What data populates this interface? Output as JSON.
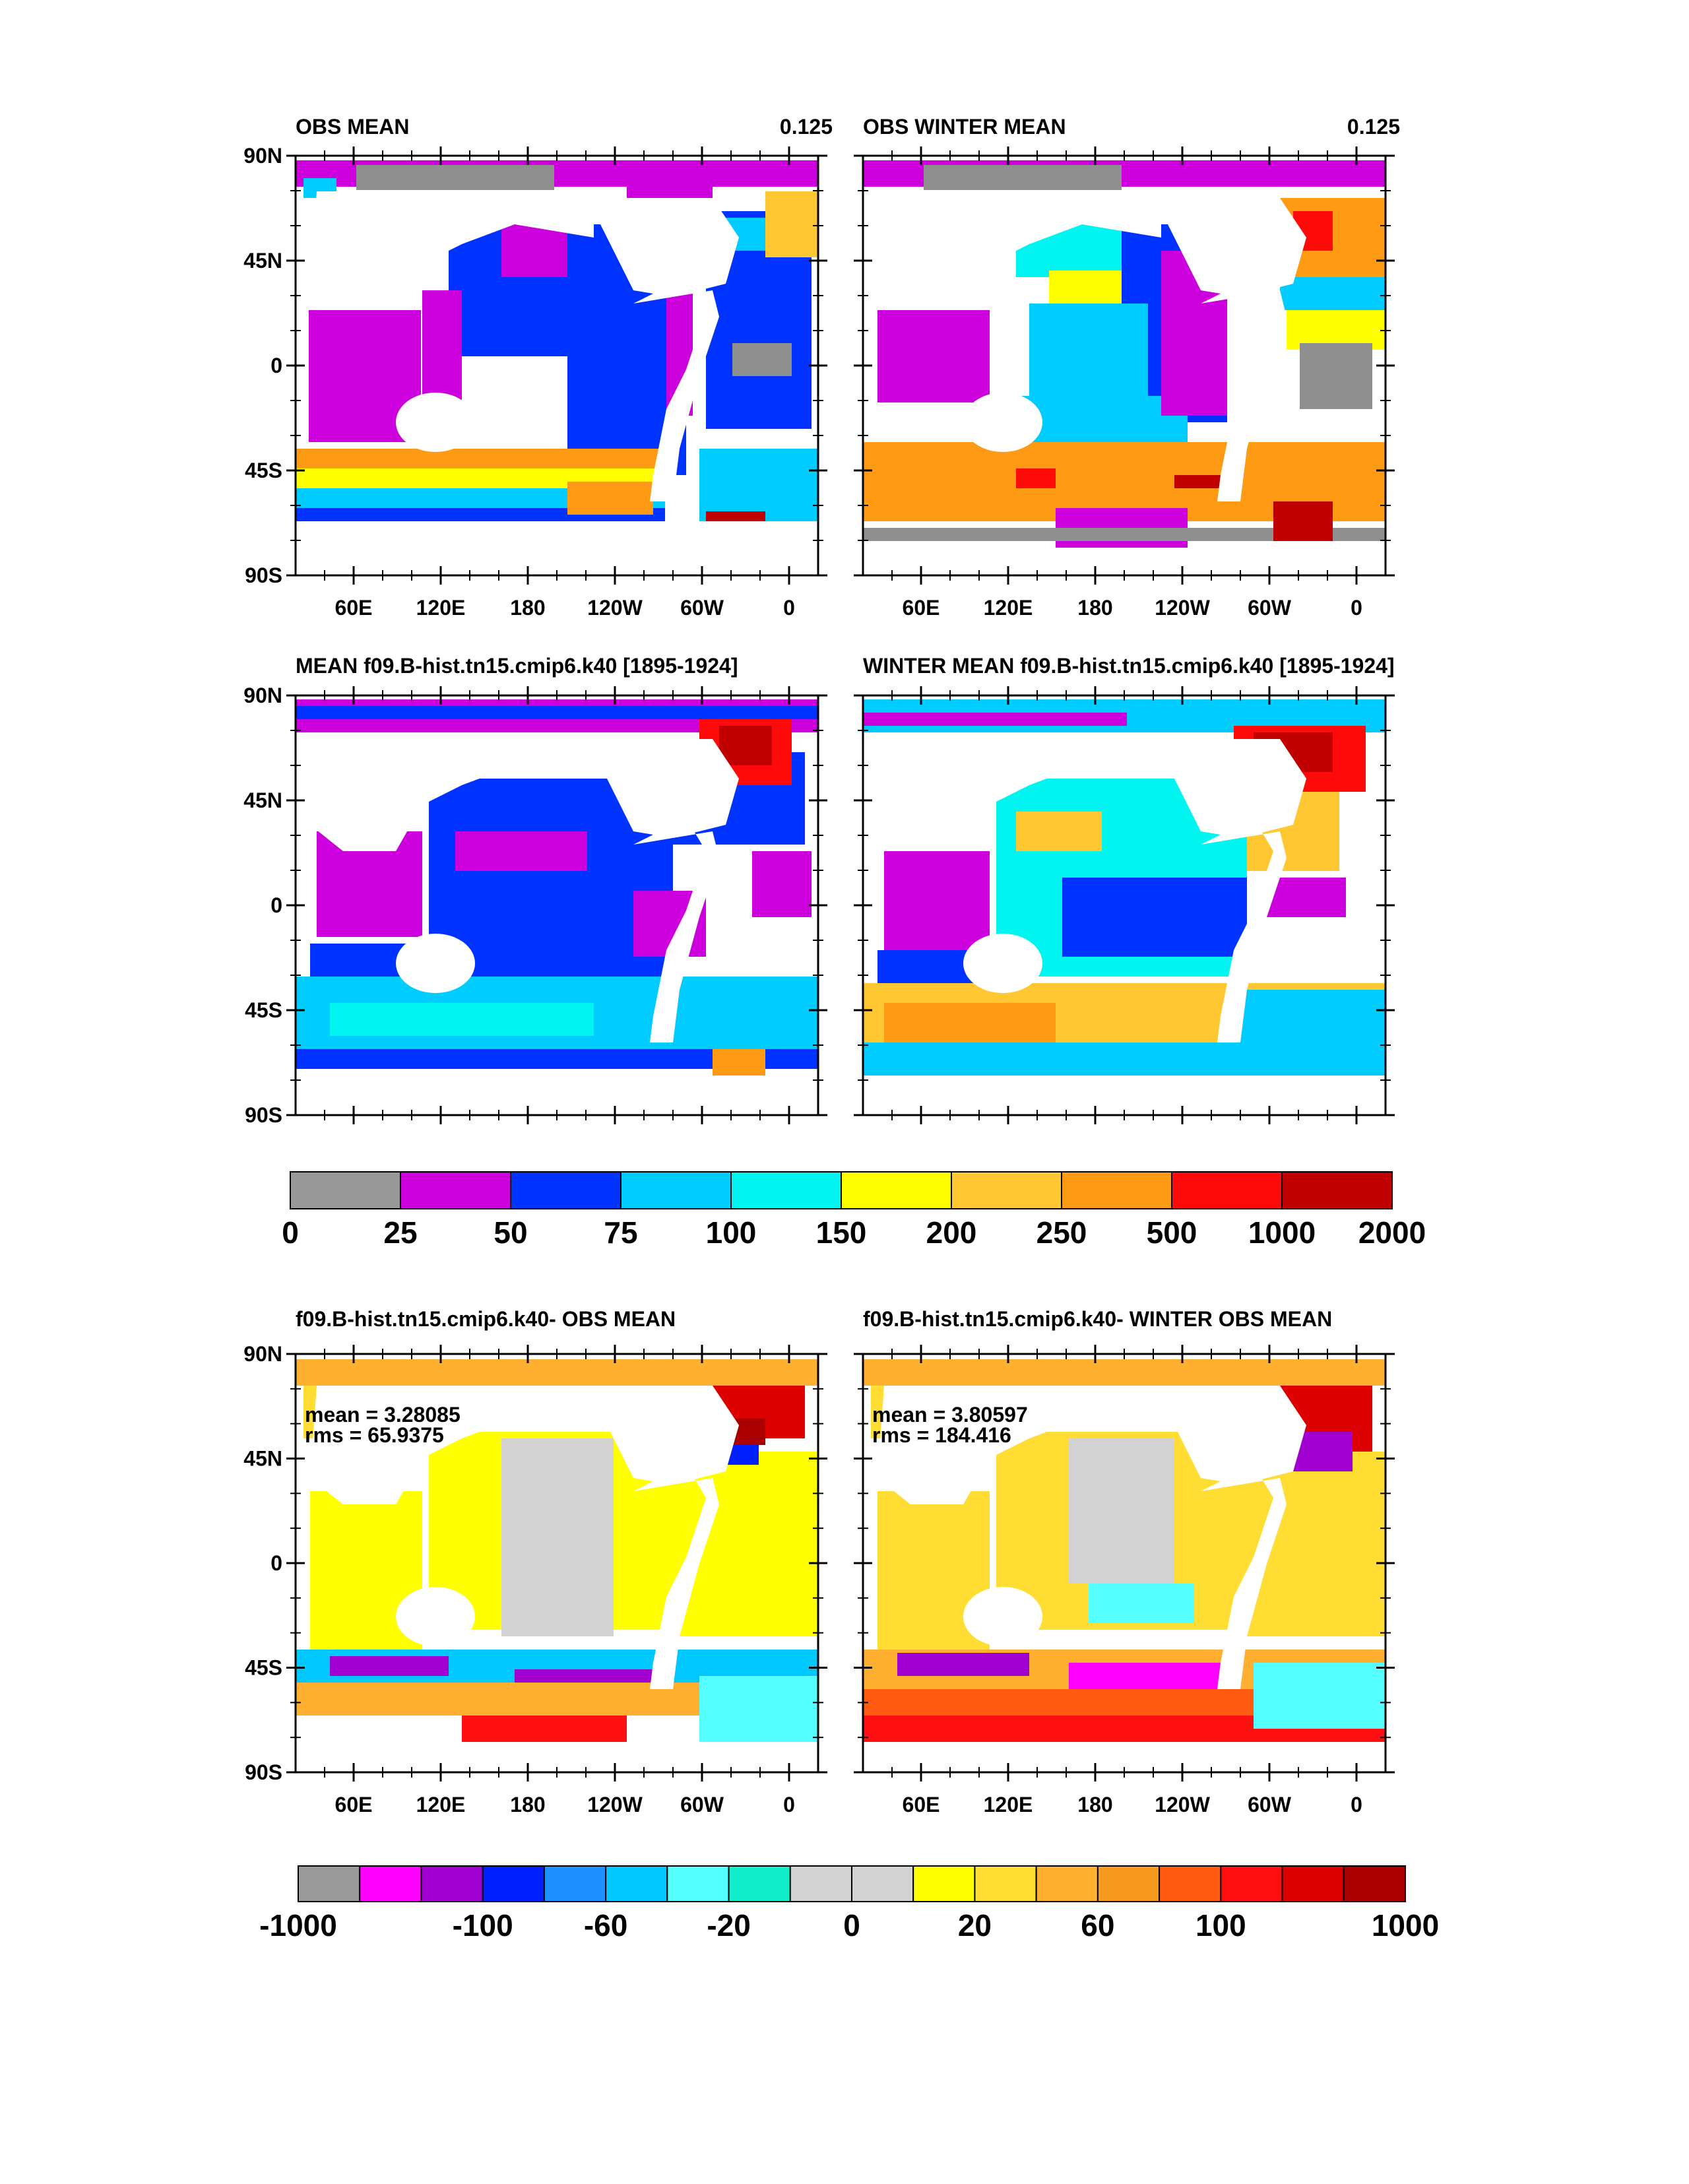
{
  "chart_data": {
    "type": "heatmap",
    "panels": [
      {
        "id": "p1",
        "title": "OBS MEAN",
        "right_label": "0.125",
        "scale": "abs",
        "field": "obs_annual"
      },
      {
        "id": "p2",
        "title": "OBS WINTER MEAN",
        "right_label": "0.125",
        "scale": "abs",
        "field": "obs_winter"
      },
      {
        "id": "p3",
        "title": "MEAN f09.B-hist.tn15.cmip6.k40 [1895-1924]",
        "right_label": "",
        "scale": "abs",
        "field": "model_annual"
      },
      {
        "id": "p4",
        "title": "WINTER MEAN f09.B-hist.tn15.cmip6.k40 [1895-1924]",
        "right_label": "",
        "scale": "abs",
        "field": "model_winter"
      },
      {
        "id": "p5",
        "title": "f09.B-hist.tn15.cmip6.k40- OBS MEAN",
        "right_label": "",
        "scale": "diff",
        "field": "diff_annual",
        "mean_label": "mean = 3.28085",
        "rms_label": "rms = 65.9375"
      },
      {
        "id": "p6",
        "title": "f09.B-hist.tn15.cmip6.k40- WINTER OBS MEAN",
        "right_label": "",
        "scale": "diff",
        "field": "diff_winter",
        "mean_label": "mean = 3.80597",
        "rms_label": "rms = 184.416"
      }
    ],
    "y_ticks": [
      "90N",
      "45N",
      "0",
      "45S",
      "90S"
    ],
    "y_values": [
      90,
      45,
      0,
      -45,
      -90
    ],
    "x_ticks": [
      "60E",
      "120E",
      "180",
      "120W",
      "60W",
      "0"
    ],
    "x_values": [
      60,
      120,
      180,
      240,
      300,
      360
    ],
    "xlim": [
      20,
      380
    ],
    "ylim": [
      -90,
      90
    ],
    "colorbar_abs": {
      "labels": [
        "0",
        "25",
        "50",
        "75",
        "100",
        "150",
        "200",
        "250",
        "500",
        "1000",
        "2000"
      ],
      "colors": [
        "#999999",
        "#cc00dd",
        "#0033ff",
        "#00ccff",
        "#00f5f0",
        "#ffff00",
        "#ffc832",
        "#ff9a14",
        "#ff0a0a",
        "#c00000"
      ]
    },
    "colorbar_diff": {
      "labels": [
        "-1000",
        "-100",
        "-60",
        "-20",
        "0",
        "20",
        "60",
        "100",
        "1000"
      ],
      "colors": [
        "#9a9a9a",
        "#ff00ff",
        "#a000d0",
        "#0020ff",
        "#1e90ff",
        "#00c8ff",
        "#55ffff",
        "#11eecc",
        "#d2d2d2",
        "#d2d2d2",
        "#ffff00",
        "#ffdd33",
        "#ffb030",
        "#f89a20",
        "#ff5a10",
        "#ff1010",
        "#dd0000",
        "#aa0000"
      ]
    }
  }
}
